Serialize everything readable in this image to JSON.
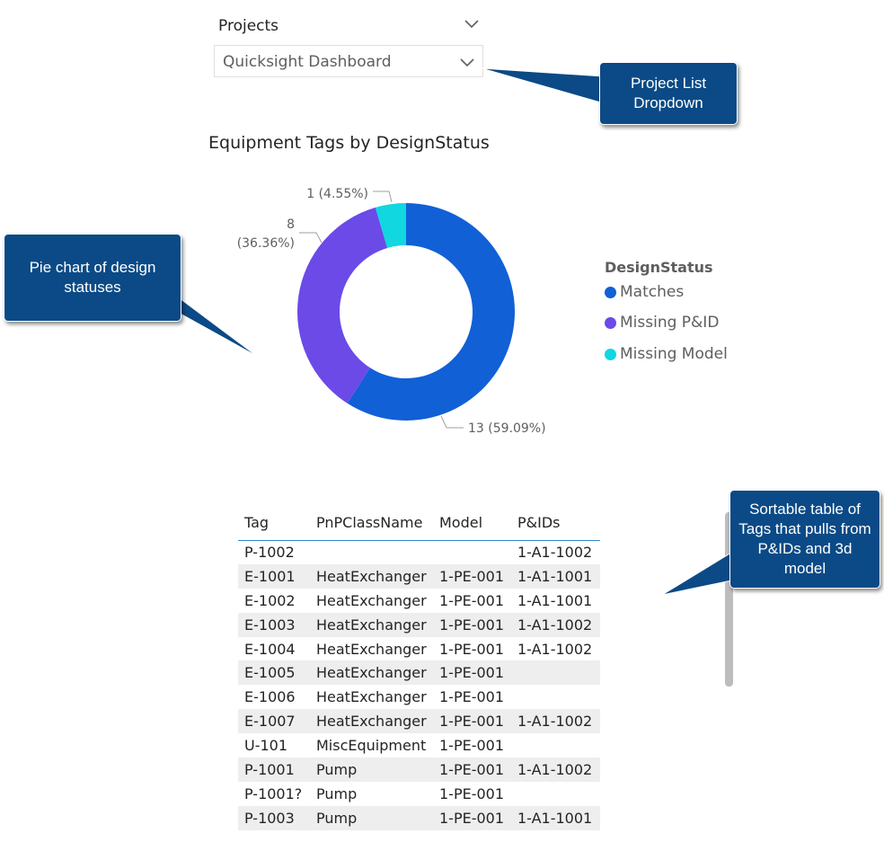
{
  "slicer": {
    "title": "Projects",
    "selected_value": "Quicksight Dashboard"
  },
  "chart": {
    "title": "Equipment Tags by DesignStatus",
    "legend_title": "DesignStatus",
    "slice_labels": {
      "matches_value": "13 (59.09%)",
      "missing_pid_count": "8",
      "missing_pid_pct": "(36.36%)",
      "missing_model_value": "1 (4.55%)"
    }
  },
  "chart_data": {
    "type": "pie",
    "title": "Equipment Tags by DesignStatus",
    "legend_title": "DesignStatus",
    "legend_position": "right",
    "donut": true,
    "slices": [
      {
        "label": "Matches",
        "value": 13,
        "percent": 59.09,
        "color": "#1160d6"
      },
      {
        "label": "Missing P&ID",
        "value": 8,
        "percent": 36.36,
        "color": "#6b4ae8"
      },
      {
        "label": "Missing Model",
        "value": 1,
        "percent": 4.55,
        "color": "#10d7e0"
      }
    ]
  },
  "table": {
    "columns": [
      "Tag",
      "PnPClassName",
      "Model",
      "P&IDs"
    ],
    "rows": [
      [
        "P-1002",
        "",
        "",
        "1-A1-1002"
      ],
      [
        "E-1001",
        "HeatExchanger",
        "1-PE-001",
        "1-A1-1001"
      ],
      [
        "E-1002",
        "HeatExchanger",
        "1-PE-001",
        "1-A1-1001"
      ],
      [
        "E-1003",
        "HeatExchanger",
        "1-PE-001",
        "1-A1-1002"
      ],
      [
        "E-1004",
        "HeatExchanger",
        "1-PE-001",
        "1-A1-1002"
      ],
      [
        "E-1005",
        "HeatExchanger",
        "1-PE-001",
        ""
      ],
      [
        "E-1006",
        "HeatExchanger",
        "1-PE-001",
        ""
      ],
      [
        "E-1007",
        "HeatExchanger",
        "1-PE-001",
        "1-A1-1002"
      ],
      [
        "U-101",
        "MiscEquipment",
        "1-PE-001",
        ""
      ],
      [
        "P-1001",
        "Pump",
        "1-PE-001",
        "1-A1-1002"
      ],
      [
        "P-1001?",
        "Pump",
        "1-PE-001",
        ""
      ],
      [
        "P-1003",
        "Pump",
        "1-PE-001",
        "1-A1-1001"
      ]
    ]
  },
  "callouts": {
    "dropdown": "Project List Dropdown",
    "pie": "Pie chart of design statuses",
    "table": "Sortable table of Tags that pulls from P&IDs and 3d model"
  },
  "colors": {
    "callout_bg": "#0b4a86",
    "table_header_rule": "#2f86d0",
    "row_stripe": "#eeeeee"
  },
  "icons": {
    "slicer_header": "chevron-down-icon",
    "slicer_box": "chevron-down-icon",
    "legend_marker": "circle-marker"
  }
}
